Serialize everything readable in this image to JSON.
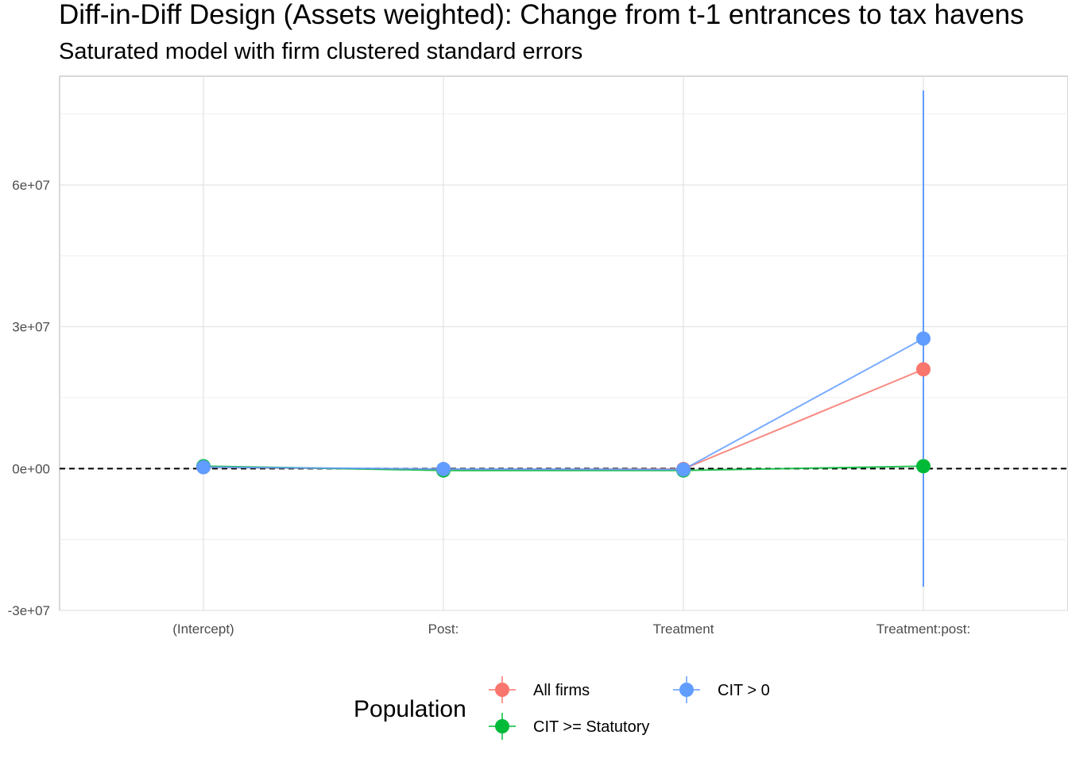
{
  "chart_data": {
    "type": "line",
    "title": "Diff-in-Diff Design (Assets weighted): Change from t-1 entrances to tax havens",
    "subtitle": "Saturated model with firm clustered standard errors",
    "xlabel": "",
    "ylabel": "",
    "categories": [
      "(Intercept)",
      "Post:",
      "Treatment",
      "Treatment:post:"
    ],
    "ylim": [
      -30000000,
      90000000
    ],
    "y_ticks": [
      -30000000,
      0,
      30000000,
      60000000
    ],
    "y_tick_labels": [
      "-3e+07",
      "0e+00",
      "3e+07",
      "6e+07"
    ],
    "reference_line": {
      "y": 0,
      "style": "dashed"
    },
    "grid": true,
    "legend": {
      "title": "Population",
      "position": "bottom"
    },
    "series": [
      {
        "name": "All firms",
        "color": "#F8766D",
        "values": [
          300000,
          -200000,
          -100000,
          21000000
        ],
        "ci_low": [
          null,
          null,
          null,
          null
        ],
        "ci_high": [
          null,
          null,
          null,
          null
        ]
      },
      {
        "name": "CIT >= Statutory",
        "color": "#00BA38",
        "values": [
          500000,
          -400000,
          -400000,
          500000
        ],
        "ci_low": [
          null,
          null,
          null,
          null
        ],
        "ci_high": [
          null,
          null,
          null,
          null
        ]
      },
      {
        "name": "CIT > 0",
        "color": "#619CFF",
        "values": [
          300000,
          -100000,
          -200000,
          27500000
        ],
        "ci_low": [
          null,
          null,
          null,
          -25000000
        ],
        "ci_high": [
          null,
          null,
          null,
          80000000
        ]
      }
    ]
  }
}
